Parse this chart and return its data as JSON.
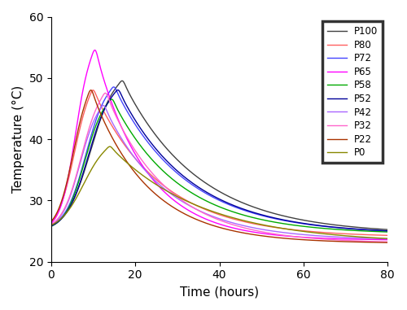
{
  "xlabel": "Time (hours)",
  "ylabel": "Temperature (°C)",
  "xlim": [
    0,
    80
  ],
  "ylim": [
    20,
    60
  ],
  "xticks": [
    0,
    20,
    40,
    60,
    80
  ],
  "yticks": [
    20,
    30,
    40,
    50,
    60
  ],
  "series": [
    {
      "label": "P100",
      "color": "#404040",
      "t0": 25,
      "base": 25.0,
      "peak_temp": 49.5,
      "peak_time": 17.0,
      "rise_k": 0.35,
      "fall_tau": 18.0,
      "end_temp": 24.5
    },
    {
      "label": "P80",
      "color": "#FF6060",
      "t0": 25,
      "base": 25.0,
      "peak_temp": 48.0,
      "peak_time": 10.0,
      "rise_k": 0.5,
      "fall_tau": 16.0,
      "end_temp": 24.0
    },
    {
      "label": "P72",
      "color": "#4444FF",
      "t0": 25,
      "base": 25.0,
      "peak_temp": 48.5,
      "peak_time": 15.0,
      "rise_k": 0.4,
      "fall_tau": 17.0,
      "end_temp": 24.5
    },
    {
      "label": "P65",
      "color": "#FF00FF",
      "t0": 25,
      "base": 25.0,
      "peak_temp": 54.5,
      "peak_time": 10.5,
      "rise_k": 0.55,
      "fall_tau": 12.0,
      "end_temp": 23.5
    },
    {
      "label": "P58",
      "color": "#00AA00",
      "t0": 25,
      "base": 25.0,
      "peak_temp": 46.5,
      "peak_time": 14.5,
      "rise_k": 0.42,
      "fall_tau": 16.0,
      "end_temp": 24.5
    },
    {
      "label": "P52",
      "color": "#000099",
      "t0": 25,
      "base": 25.0,
      "peak_temp": 48.0,
      "peak_time": 16.0,
      "rise_k": 0.38,
      "fall_tau": 17.0,
      "end_temp": 24.5
    },
    {
      "label": "P42",
      "color": "#AA66FF",
      "t0": 25,
      "base": 25.0,
      "peak_temp": 45.5,
      "peak_time": 12.5,
      "rise_k": 0.45,
      "fall_tau": 15.0,
      "end_temp": 23.5
    },
    {
      "label": "P32",
      "color": "#FF66CC",
      "t0": 25,
      "base": 25.0,
      "peak_temp": 47.5,
      "peak_time": 13.0,
      "rise_k": 0.43,
      "fall_tau": 14.5,
      "end_temp": 23.0
    },
    {
      "label": "P22",
      "color": "#AA3300",
      "t0": 25,
      "base": 25.0,
      "peak_temp": 48.0,
      "peak_time": 9.5,
      "rise_k": 0.52,
      "fall_tau": 13.5,
      "end_temp": 23.0
    },
    {
      "label": "P0",
      "color": "#888800",
      "t0": 25,
      "base": 25.0,
      "peak_temp": 38.8,
      "peak_time": 14.0,
      "rise_k": 0.35,
      "fall_tau": 22.0,
      "end_temp": 23.0
    }
  ],
  "legend_fontsize": 8.5,
  "axis_fontsize": 11,
  "tick_fontsize": 10,
  "figsize": [
    5.0,
    3.81
  ],
  "dpi": 100
}
